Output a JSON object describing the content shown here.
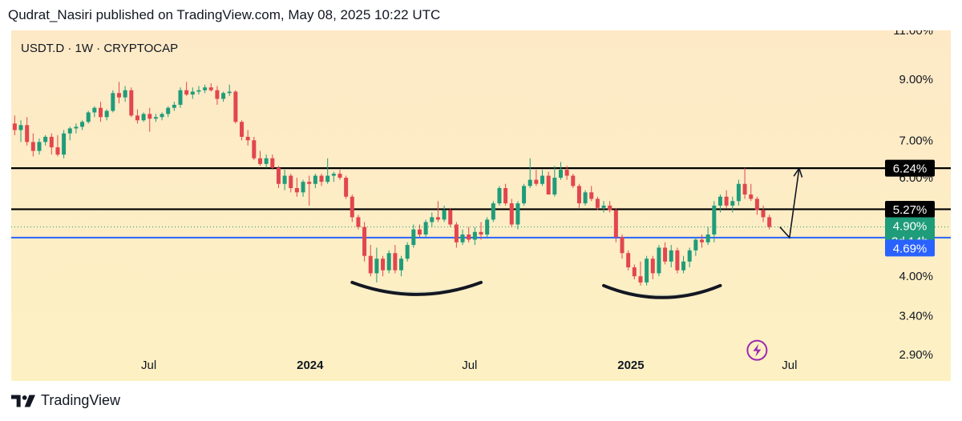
{
  "header": {
    "text": "Qudrat_Nasiri published on TradingView.com, May 08, 2025 10:22 UTC"
  },
  "symbol_info": {
    "text": "USDT.D · 1W · CRYPTOCAP"
  },
  "footer": {
    "brand": "TradingView",
    "logo_icon": "tradingview-logo-icon"
  },
  "colors": {
    "background_top": "#fde9c6",
    "background_bottom": "#fdf1c4",
    "up_candle": "#1f9c7a",
    "down_candle": "#e2464f",
    "resistance_line": "#000000",
    "support_line": "#2962ff",
    "current_price_tag": "#1f9c7a",
    "support_tag": "#2962ff",
    "resistance_tag": "#000000",
    "lightning_icon": "#9c27b0"
  },
  "chart_data": {
    "type": "candlestick",
    "symbol": "USDT.D",
    "interval": "1W",
    "exchange": "CRYPTOCAP",
    "y_scale": "log",
    "ylim": [
      2.6,
      11.0
    ],
    "y_ticks": [
      {
        "value": 11.0,
        "label": "11.00%"
      },
      {
        "value": 9.0,
        "label": "9.00%"
      },
      {
        "value": 7.0,
        "label": "7.00%"
      },
      {
        "value": 6.0,
        "label": "6.00%"
      },
      {
        "value": 4.0,
        "label": "4.00%"
      },
      {
        "value": 3.4,
        "label": "3.40%"
      },
      {
        "value": 2.9,
        "label": "2.90%"
      }
    ],
    "x_ticks": [
      {
        "date": "2023-07-01",
        "label": "Jul",
        "bold": false
      },
      {
        "date": "2024-01-01",
        "label": "2024",
        "bold": true
      },
      {
        "date": "2024-07-01",
        "label": "Jul",
        "bold": false
      },
      {
        "date": "2025-01-01",
        "label": "2025",
        "bold": true
      },
      {
        "date": "2025-07-01",
        "label": "Jul",
        "bold": false
      }
    ],
    "xlim": [
      "2023-01-25",
      "2025-10-18"
    ],
    "candles": [
      [
        "2023-01-29",
        7.5,
        7.75,
        7.15,
        7.3
      ],
      [
        "2023-02-05",
        7.3,
        7.6,
        6.95,
        7.45
      ],
      [
        "2023-02-12",
        7.45,
        7.7,
        6.85,
        6.95
      ],
      [
        "2023-02-19",
        6.95,
        7.2,
        6.55,
        6.7
      ],
      [
        "2023-02-26",
        6.7,
        7.05,
        6.6,
        6.95
      ],
      [
        "2023-03-05",
        6.95,
        7.15,
        6.85,
        7.1
      ],
      [
        "2023-03-12",
        7.1,
        7.2,
        6.6,
        6.8
      ],
      [
        "2023-03-19",
        6.8,
        7.15,
        6.55,
        6.6
      ],
      [
        "2023-03-26",
        6.6,
        7.3,
        6.5,
        7.2
      ],
      [
        "2023-04-02",
        7.2,
        7.4,
        7.0,
        7.35
      ],
      [
        "2023-04-09",
        7.35,
        7.5,
        7.2,
        7.4
      ],
      [
        "2023-04-16",
        7.4,
        7.6,
        7.3,
        7.55
      ],
      [
        "2023-04-23",
        7.55,
        7.9,
        7.5,
        7.85
      ],
      [
        "2023-04-30",
        7.85,
        8.05,
        7.7,
        8.0
      ],
      [
        "2023-05-07",
        8.0,
        8.2,
        7.55,
        7.7
      ],
      [
        "2023-05-14",
        7.7,
        7.95,
        7.6,
        7.9
      ],
      [
        "2023-05-21",
        7.9,
        8.6,
        7.85,
        8.5
      ],
      [
        "2023-05-28",
        8.5,
        8.9,
        8.15,
        8.35
      ],
      [
        "2023-06-04",
        8.35,
        8.75,
        8.2,
        8.6
      ],
      [
        "2023-06-11",
        8.6,
        8.7,
        7.7,
        7.75
      ],
      [
        "2023-06-18",
        7.75,
        7.95,
        7.5,
        7.6
      ],
      [
        "2023-06-25",
        7.6,
        7.85,
        7.55,
        7.8
      ],
      [
        "2023-07-02",
        7.8,
        8.0,
        7.25,
        7.65
      ],
      [
        "2023-07-09",
        7.65,
        7.8,
        7.55,
        7.7
      ],
      [
        "2023-07-16",
        7.7,
        7.85,
        7.6,
        7.8
      ],
      [
        "2023-07-23",
        7.8,
        8.05,
        7.7,
        8.0
      ],
      [
        "2023-07-30",
        8.0,
        8.2,
        7.9,
        8.1
      ],
      [
        "2023-08-06",
        8.1,
        8.7,
        8.0,
        8.6
      ],
      [
        "2023-08-13",
        8.6,
        8.9,
        8.4,
        8.45
      ],
      [
        "2023-08-20",
        8.45,
        8.7,
        8.3,
        8.55
      ],
      [
        "2023-08-27",
        8.55,
        8.75,
        8.45,
        8.6
      ],
      [
        "2023-09-03",
        8.6,
        8.8,
        8.5,
        8.7
      ],
      [
        "2023-09-10",
        8.7,
        8.85,
        8.55,
        8.6
      ],
      [
        "2023-09-17",
        8.6,
        8.75,
        8.1,
        8.3
      ],
      [
        "2023-09-24",
        8.3,
        8.55,
        8.2,
        8.5
      ],
      [
        "2023-10-01",
        8.5,
        8.8,
        8.4,
        8.55
      ],
      [
        "2023-10-08",
        8.55,
        8.6,
        7.5,
        7.55
      ],
      [
        "2023-10-15",
        7.55,
        7.6,
        7.0,
        7.1
      ],
      [
        "2023-10-22",
        7.1,
        7.3,
        6.85,
        7.0
      ],
      [
        "2023-10-29",
        7.0,
        7.1,
        6.45,
        6.5
      ],
      [
        "2023-11-05",
        6.5,
        6.7,
        6.3,
        6.35
      ],
      [
        "2023-11-12",
        6.35,
        6.6,
        6.25,
        6.5
      ],
      [
        "2023-11-19",
        6.5,
        6.6,
        6.2,
        6.25
      ],
      [
        "2023-11-26",
        6.25,
        6.3,
        5.75,
        5.85
      ],
      [
        "2023-12-03",
        5.85,
        6.2,
        5.7,
        6.05
      ],
      [
        "2023-12-10",
        6.05,
        6.1,
        5.65,
        5.75
      ],
      [
        "2023-12-17",
        5.75,
        6.0,
        5.55,
        5.65
      ],
      [
        "2023-12-24",
        5.65,
        5.95,
        5.55,
        5.9
      ],
      [
        "2023-12-31",
        5.9,
        6.05,
        5.35,
        5.85
      ],
      [
        "2024-01-07",
        5.85,
        6.1,
        5.75,
        6.05
      ],
      [
        "2024-01-14",
        6.05,
        6.1,
        5.8,
        5.9
      ],
      [
        "2024-01-21",
        5.9,
        6.5,
        5.85,
        6.05
      ],
      [
        "2024-01-28",
        6.05,
        6.15,
        5.9,
        6.1
      ],
      [
        "2024-02-04",
        6.1,
        6.2,
        5.95,
        6.0
      ],
      [
        "2024-02-11",
        6.0,
        6.05,
        5.5,
        5.55
      ],
      [
        "2024-02-18",
        5.55,
        5.6,
        5.0,
        5.1
      ],
      [
        "2024-02-25",
        5.1,
        5.15,
        4.85,
        4.9
      ],
      [
        "2024-03-03",
        4.9,
        5.0,
        4.25,
        4.35
      ],
      [
        "2024-03-10",
        4.35,
        4.55,
        4.0,
        4.05
      ],
      [
        "2024-03-17",
        4.05,
        4.5,
        3.9,
        4.3
      ],
      [
        "2024-03-24",
        4.3,
        4.35,
        4.0,
        4.1
      ],
      [
        "2024-03-31",
        4.1,
        4.45,
        4.05,
        4.4
      ],
      [
        "2024-04-07",
        4.4,
        4.55,
        4.05,
        4.1
      ],
      [
        "2024-04-14",
        4.1,
        4.35,
        4.0,
        4.3
      ],
      [
        "2024-04-21",
        4.3,
        4.6,
        4.25,
        4.55
      ],
      [
        "2024-04-28",
        4.55,
        4.95,
        4.5,
        4.85
      ],
      [
        "2024-05-05",
        4.85,
        4.95,
        4.7,
        4.75
      ],
      [
        "2024-05-12",
        4.75,
        5.05,
        4.7,
        5.0
      ],
      [
        "2024-05-19",
        5.0,
        5.2,
        4.9,
        5.1
      ],
      [
        "2024-05-26",
        5.1,
        5.45,
        5.0,
        5.05
      ],
      [
        "2024-06-02",
        5.05,
        5.35,
        5.0,
        5.25
      ],
      [
        "2024-06-09",
        5.25,
        5.3,
        4.9,
        4.95
      ],
      [
        "2024-06-16",
        4.95,
        5.0,
        4.5,
        4.6
      ],
      [
        "2024-06-23",
        4.6,
        4.85,
        4.55,
        4.75
      ],
      [
        "2024-06-30",
        4.75,
        4.9,
        4.6,
        4.65
      ],
      [
        "2024-07-07",
        4.65,
        4.9,
        4.55,
        4.8
      ],
      [
        "2024-07-14",
        4.8,
        5.0,
        4.65,
        4.75
      ],
      [
        "2024-07-21",
        4.75,
        5.1,
        4.7,
        5.05
      ],
      [
        "2024-07-28",
        5.05,
        5.45,
        5.0,
        5.4
      ],
      [
        "2024-08-04",
        5.4,
        5.8,
        5.35,
        5.75
      ],
      [
        "2024-08-11",
        5.75,
        5.85,
        5.35,
        5.4
      ],
      [
        "2024-08-18",
        5.4,
        5.5,
        4.9,
        4.95
      ],
      [
        "2024-08-25",
        4.95,
        5.45,
        4.85,
        5.4
      ],
      [
        "2024-09-01",
        5.4,
        5.85,
        5.35,
        5.8
      ],
      [
        "2024-09-08",
        5.8,
        6.5,
        5.75,
        5.95
      ],
      [
        "2024-09-15",
        5.95,
        6.2,
        5.8,
        5.85
      ],
      [
        "2024-09-22",
        5.85,
        6.2,
        5.8,
        6.05
      ],
      [
        "2024-09-29",
        6.05,
        6.15,
        5.6,
        5.6
      ],
      [
        "2024-10-06",
        5.6,
        6.3,
        5.55,
        6.0
      ],
      [
        "2024-10-13",
        6.0,
        6.4,
        5.95,
        6.2
      ],
      [
        "2024-10-20",
        6.2,
        6.3,
        5.95,
        6.05
      ],
      [
        "2024-10-27",
        6.05,
        6.1,
        5.75,
        5.8
      ],
      [
        "2024-11-03",
        5.8,
        5.85,
        5.3,
        5.4
      ],
      [
        "2024-11-10",
        5.4,
        5.7,
        5.35,
        5.65
      ],
      [
        "2024-11-17",
        5.65,
        5.8,
        5.45,
        5.5
      ],
      [
        "2024-11-24",
        5.5,
        5.55,
        5.25,
        5.3
      ],
      [
        "2024-12-01",
        5.3,
        5.45,
        5.2,
        5.35
      ],
      [
        "2024-12-08",
        5.35,
        5.45,
        5.2,
        5.25
      ],
      [
        "2024-12-15",
        5.25,
        5.3,
        4.6,
        4.7
      ],
      [
        "2024-12-22",
        4.7,
        4.75,
        4.3,
        4.4
      ],
      [
        "2024-12-29",
        4.4,
        4.45,
        4.1,
        4.15
      ],
      [
        "2025-01-05",
        4.15,
        4.2,
        3.95,
        4.0
      ],
      [
        "2025-01-12",
        4.0,
        4.25,
        3.85,
        3.9
      ],
      [
        "2025-01-19",
        3.9,
        4.35,
        3.85,
        4.3
      ],
      [
        "2025-01-26",
        4.3,
        4.35,
        3.95,
        4.05
      ],
      [
        "2025-02-02",
        4.05,
        4.55,
        4.0,
        4.5
      ],
      [
        "2025-02-09",
        4.5,
        4.6,
        4.2,
        4.25
      ],
      [
        "2025-02-16",
        4.25,
        4.55,
        4.15,
        4.45
      ],
      [
        "2025-02-23",
        4.45,
        4.5,
        4.05,
        4.1
      ],
      [
        "2025-03-02",
        4.1,
        4.35,
        4.05,
        4.25
      ],
      [
        "2025-03-09",
        4.25,
        4.5,
        4.15,
        4.45
      ],
      [
        "2025-03-16",
        4.45,
        4.7,
        4.35,
        4.65
      ],
      [
        "2025-03-23",
        4.65,
        4.75,
        4.5,
        4.6
      ],
      [
        "2025-03-30",
        4.6,
        4.9,
        4.55,
        4.75
      ],
      [
        "2025-04-06",
        4.75,
        5.45,
        4.6,
        5.35
      ],
      [
        "2025-04-13",
        5.35,
        5.6,
        5.2,
        5.55
      ],
      [
        "2025-04-20",
        5.55,
        5.7,
        5.3,
        5.35
      ],
      [
        "2025-04-27",
        5.35,
        5.55,
        5.2,
        5.45
      ],
      [
        "2025-05-04",
        5.45,
        5.95,
        5.35,
        5.85
      ],
      [
        "2025-05-11",
        5.85,
        6.25,
        5.5,
        5.6
      ],
      [
        "2025-05-18",
        5.6,
        5.85,
        5.45,
        5.5
      ],
      [
        "2025-05-25",
        5.5,
        5.55,
        5.15,
        5.25
      ],
      [
        "2025-06-01",
        5.25,
        5.35,
        5.0,
        5.1
      ],
      [
        "2025-06-08",
        5.1,
        5.15,
        4.85,
        4.9
      ]
    ],
    "levels": [
      {
        "name": "resistance_upper",
        "value": 6.24,
        "label": "6.24%",
        "color": "#000000"
      },
      {
        "name": "resistance_lower",
        "value": 5.27,
        "label": "5.27%",
        "color": "#000000"
      },
      {
        "name": "support",
        "value": 4.69,
        "label": "4.69%",
        "color": "#2962ff"
      }
    ],
    "current_price": {
      "value": 4.9,
      "label": "4.90%",
      "countdown": "3d 14h",
      "color": "#1f9c7a"
    },
    "projection_path": [
      {
        "date": "2025-06-20",
        "value": 4.9
      },
      {
        "date": "2025-07-01",
        "value": 4.69
      },
      {
        "date": "2025-07-12",
        "value": 6.24
      }
    ],
    "annotations": [
      {
        "type": "arc",
        "start": "2024-02-18",
        "end": "2024-07-14",
        "value": 3.9,
        "label": ""
      },
      {
        "type": "arc",
        "start": "2024-12-01",
        "end": "2025-04-13",
        "value": 3.85,
        "label": ""
      }
    ],
    "lightning_icon": {
      "date": "2025-05-25",
      "value": 2.95,
      "icon": "lightning-icon"
    }
  }
}
